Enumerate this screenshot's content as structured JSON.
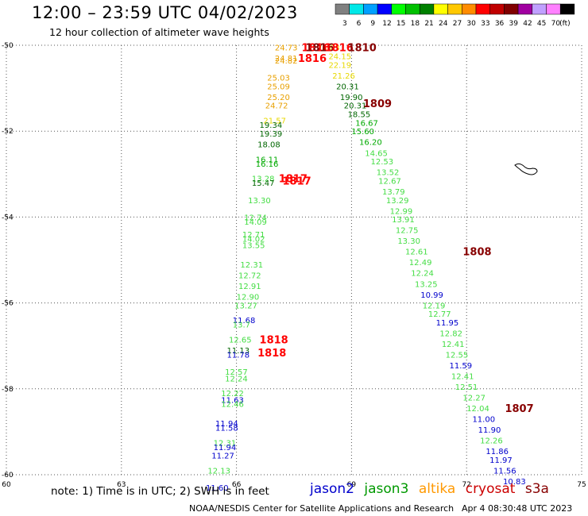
{
  "header": {
    "title": "12:00 – 23:59 UTC 04/02/2023",
    "subtitle": "12 hour collection of altimeter wave heights"
  },
  "color_scale": {
    "unit": "(ft)",
    "items": [
      {
        "label": "3",
        "color": "#808080"
      },
      {
        "label": "6",
        "color": "#00e8e8"
      },
      {
        "label": "9",
        "color": "#00a0ff"
      },
      {
        "label": "12",
        "color": "#0000ff"
      },
      {
        "label": "15",
        "color": "#00ff00"
      },
      {
        "label": "18",
        "color": "#00c000"
      },
      {
        "label": "21",
        "color": "#008000"
      },
      {
        "label": "24",
        "color": "#ffff00"
      },
      {
        "label": "27",
        "color": "#ffc800"
      },
      {
        "label": "30",
        "color": "#ff8c00"
      },
      {
        "label": "33",
        "color": "#ff0000"
      },
      {
        "label": "36",
        "color": "#c00000"
      },
      {
        "label": "39",
        "color": "#800000"
      },
      {
        "label": "42",
        "color": "#a000a0"
      },
      {
        "label": "45",
        "color": "#c0a0ff"
      },
      {
        "label": "70",
        "color": "#ff80ff"
      },
      {
        "label": "",
        "color": "#000000"
      }
    ]
  },
  "footer": {
    "note": "note:  1) Time is in UTC;  2) SWH is in feet",
    "credit": "NOAA/NESDIS Center for Satellite Applications and Research",
    "timestamp": "Apr  4 08:30:48 UTC 2023"
  },
  "satellites": [
    {
      "name": "jason2",
      "color": "#0000cc"
    },
    {
      "name": "jason3",
      "color": "#009900"
    },
    {
      "name": "altika",
      "color": "#ff9900"
    },
    {
      "name": "cryosat",
      "color": "#cc0000"
    },
    {
      "name": "s3a",
      "color": "#880000"
    }
  ],
  "chart_data": {
    "type": "scatter",
    "xlim": [
      60,
      75
    ],
    "ylim": [
      -60,
      -50
    ],
    "xticks": [
      "60",
      "63",
      "66",
      "69",
      "72",
      "75"
    ],
    "yticks": [
      "-50",
      "-52",
      "-54",
      "-56",
      "-58",
      "-60"
    ],
    "grid": true,
    "colors": {
      "yellow": "#e8d800",
      "orange": "#e8a000",
      "dkgreen": "#006600",
      "green": "#00aa00",
      "ltgreen": "#44dd44",
      "blue": "#0000cc",
      "red": "#ff0000",
      "maroon": "#880000"
    },
    "points": [
      {
        "x": 67.0,
        "y": -50.05,
        "label": "24.73",
        "c": "orange"
      },
      {
        "x": 68.1,
        "y": -50.05,
        "label": "24.83",
        "c": "yellow"
      },
      {
        "x": 67.0,
        "y": -50.3,
        "label": "24.81",
        "c": "orange"
      },
      {
        "x": 67.0,
        "y": -50.35,
        "label": "24.82",
        "c": "orange"
      },
      {
        "x": 68.4,
        "y": -50.25,
        "label": "24.15",
        "c": "yellow"
      },
      {
        "x": 68.4,
        "y": -50.45,
        "label": "22.19",
        "c": "yellow"
      },
      {
        "x": 68.5,
        "y": -50.7,
        "label": "21.26",
        "c": "yellow"
      },
      {
        "x": 66.8,
        "y": -50.75,
        "label": "25.03",
        "c": "orange"
      },
      {
        "x": 66.8,
        "y": -50.95,
        "label": "25.09",
        "c": "orange"
      },
      {
        "x": 68.6,
        "y": -50.95,
        "label": "20.31",
        "c": "dkgreen"
      },
      {
        "x": 66.8,
        "y": -51.2,
        "label": "25.20",
        "c": "orange"
      },
      {
        "x": 68.7,
        "y": -51.2,
        "label": "19.90",
        "c": "dkgreen"
      },
      {
        "x": 66.75,
        "y": -51.4,
        "label": "24.72",
        "c": "orange"
      },
      {
        "x": 68.8,
        "y": -51.4,
        "label": "20.31",
        "c": "dkgreen"
      },
      {
        "x": 68.9,
        "y": -51.6,
        "label": "18.55",
        "c": "dkgreen"
      },
      {
        "x": 66.7,
        "y": -51.75,
        "label": "21.57",
        "c": "yellow"
      },
      {
        "x": 69.1,
        "y": -51.8,
        "label": "16.67",
        "c": "green"
      },
      {
        "x": 66.6,
        "y": -51.85,
        "label": "19.34",
        "c": "dkgreen"
      },
      {
        "x": 69.0,
        "y": -52.0,
        "label": "15.60",
        "c": "green"
      },
      {
        "x": 66.6,
        "y": -52.05,
        "label": "19.39",
        "c": "dkgreen"
      },
      {
        "x": 69.2,
        "y": -52.25,
        "label": "16.20",
        "c": "green"
      },
      {
        "x": 66.55,
        "y": -52.3,
        "label": "18.08",
        "c": "dkgreen"
      },
      {
        "x": 69.35,
        "y": -52.5,
        "label": "14.65",
        "c": "ltgreen"
      },
      {
        "x": 66.5,
        "y": -52.65,
        "label": "16.11",
        "c": "green"
      },
      {
        "x": 69.5,
        "y": -52.7,
        "label": "12.53",
        "c": "ltgreen"
      },
      {
        "x": 66.5,
        "y": -52.75,
        "label": "16.16",
        "c": "green"
      },
      {
        "x": 69.65,
        "y": -52.95,
        "label": "13.52",
        "c": "ltgreen"
      },
      {
        "x": 66.4,
        "y": -53.1,
        "label": "13.28",
        "c": "ltgreen"
      },
      {
        "x": 69.7,
        "y": -53.15,
        "label": "12.67",
        "c": "ltgreen"
      },
      {
        "x": 66.4,
        "y": -53.2,
        "label": "15.47",
        "c": "dkgreen"
      },
      {
        "x": 69.8,
        "y": -53.4,
        "label": "13.79",
        "c": "ltgreen"
      },
      {
        "x": 69.9,
        "y": -53.6,
        "label": "13.29",
        "c": "ltgreen"
      },
      {
        "x": 66.3,
        "y": -53.6,
        "label": "13.30",
        "c": "ltgreen"
      },
      {
        "x": 70.0,
        "y": -53.85,
        "label": "12.99",
        "c": "ltgreen"
      },
      {
        "x": 66.2,
        "y": -54.0,
        "label": "12.74",
        "c": "ltgreen"
      },
      {
        "x": 70.05,
        "y": -54.05,
        "label": "13.91",
        "c": "ltgreen"
      },
      {
        "x": 66.2,
        "y": -54.1,
        "label": "14.09",
        "c": "ltgreen"
      },
      {
        "x": 70.15,
        "y": -54.3,
        "label": "12.75",
        "c": "ltgreen"
      },
      {
        "x": 66.15,
        "y": -54.4,
        "label": "12.71",
        "c": "ltgreen"
      },
      {
        "x": 70.2,
        "y": -54.55,
        "label": "13.30",
        "c": "ltgreen"
      },
      {
        "x": 66.15,
        "y": -54.5,
        "label": "14.02",
        "c": "ltgreen"
      },
      {
        "x": 66.15,
        "y": -54.65,
        "label": "13.55",
        "c": "ltgreen"
      },
      {
        "x": 70.4,
        "y": -54.8,
        "label": "12.61",
        "c": "ltgreen"
      },
      {
        "x": 70.5,
        "y": -55.05,
        "label": "12.49",
        "c": "ltgreen"
      },
      {
        "x": 66.1,
        "y": -55.1,
        "label": "12.31",
        "c": "ltgreen"
      },
      {
        "x": 70.55,
        "y": -55.3,
        "label": "12.24",
        "c": "ltgreen"
      },
      {
        "x": 66.05,
        "y": -55.35,
        "label": "12.72",
        "c": "ltgreen"
      },
      {
        "x": 70.65,
        "y": -55.55,
        "label": "13.25",
        "c": "ltgreen"
      },
      {
        "x": 66.05,
        "y": -55.6,
        "label": "12.91",
        "c": "ltgreen"
      },
      {
        "x": 70.8,
        "y": -55.8,
        "label": "10.99",
        "c": "blue"
      },
      {
        "x": 66.0,
        "y": -55.85,
        "label": "12.90",
        "c": "ltgreen"
      },
      {
        "x": 70.85,
        "y": -56.05,
        "label": "12.19",
        "c": "ltgreen"
      },
      {
        "x": 65.95,
        "y": -56.05,
        "label": "13.27",
        "c": "ltgreen"
      },
      {
        "x": 71.0,
        "y": -56.25,
        "label": "12.77",
        "c": "ltgreen"
      },
      {
        "x": 65.9,
        "y": -56.4,
        "label": "11.68",
        "c": "blue"
      },
      {
        "x": 71.2,
        "y": -56.45,
        "label": "11.95",
        "c": "blue"
      },
      {
        "x": 65.9,
        "y": -56.5,
        "label": "13.7",
        "c": "ltgreen"
      },
      {
        "x": 71.3,
        "y": -56.7,
        "label": "12.82",
        "c": "ltgreen"
      },
      {
        "x": 65.8,
        "y": -56.85,
        "label": "12.65",
        "c": "ltgreen"
      },
      {
        "x": 71.35,
        "y": -56.95,
        "label": "12.41",
        "c": "ltgreen"
      },
      {
        "x": 65.75,
        "y": -57.1,
        "label": "11.13",
        "c": "dkgreen"
      },
      {
        "x": 65.75,
        "y": -57.2,
        "label": "11.78",
        "c": "blue"
      },
      {
        "x": 71.45,
        "y": -57.2,
        "label": "12.55",
        "c": "ltgreen"
      },
      {
        "x": 71.55,
        "y": -57.45,
        "label": "11.59",
        "c": "blue"
      },
      {
        "x": 65.7,
        "y": -57.6,
        "label": "12.57",
        "c": "ltgreen"
      },
      {
        "x": 71.6,
        "y": -57.7,
        "label": "12.41",
        "c": "ltgreen"
      },
      {
        "x": 65.7,
        "y": -57.75,
        "label": "12.24",
        "c": "ltgreen"
      },
      {
        "x": 71.7,
        "y": -57.95,
        "label": "12.51",
        "c": "ltgreen"
      },
      {
        "x": 65.6,
        "y": -58.1,
        "label": "12.22",
        "c": "ltgreen"
      },
      {
        "x": 71.9,
        "y": -58.2,
        "label": "12.27",
        "c": "ltgreen"
      },
      {
        "x": 65.6,
        "y": -58.25,
        "label": "11.63",
        "c": "blue"
      },
      {
        "x": 65.6,
        "y": -58.35,
        "label": "12.46",
        "c": "ltgreen"
      },
      {
        "x": 72.0,
        "y": -58.45,
        "label": "12.04",
        "c": "ltgreen"
      },
      {
        "x": 72.15,
        "y": -58.7,
        "label": "11.00",
        "c": "blue"
      },
      {
        "x": 65.45,
        "y": -58.8,
        "label": "11.94",
        "c": "blue"
      },
      {
        "x": 65.45,
        "y": -58.9,
        "label": "11.58",
        "c": "blue"
      },
      {
        "x": 72.3,
        "y": -58.95,
        "label": "11.90",
        "c": "blue"
      },
      {
        "x": 72.35,
        "y": -59.2,
        "label": "12.26",
        "c": "ltgreen"
      },
      {
        "x": 65.4,
        "y": -59.25,
        "label": "12.31",
        "c": "ltgreen"
      },
      {
        "x": 65.4,
        "y": -59.35,
        "label": "11.94",
        "c": "blue"
      },
      {
        "x": 72.5,
        "y": -59.45,
        "label": "11.86",
        "c": "blue"
      },
      {
        "x": 65.35,
        "y": -59.55,
        "label": "11.27",
        "c": "blue"
      },
      {
        "x": 72.6,
        "y": -59.65,
        "label": "11.97",
        "c": "blue"
      },
      {
        "x": 72.7,
        "y": -59.9,
        "label": "11.56",
        "c": "blue"
      },
      {
        "x": 65.25,
        "y": -59.9,
        "label": "12.13",
        "c": "ltgreen"
      },
      {
        "x": 72.95,
        "y": -60.15,
        "label": "10.83",
        "c": "blue"
      },
      {
        "x": 65.2,
        "y": -60.3,
        "label": "11.60",
        "c": "blue"
      }
    ],
    "annotations": [
      {
        "x": 67.7,
        "y": -50.05,
        "label": "1816",
        "c": "red"
      },
      {
        "x": 67.8,
        "y": -50.05,
        "label": "1816",
        "c": "maroon"
      },
      {
        "x": 68.3,
        "y": -50.05,
        "label": "1816",
        "c": "red"
      },
      {
        "x": 68.9,
        "y": -50.05,
        "label": "1810",
        "c": "maroon"
      },
      {
        "x": 67.6,
        "y": -50.3,
        "label": "1816",
        "c": "red"
      },
      {
        "x": 69.3,
        "y": -51.35,
        "label": "1809",
        "c": "maroon"
      },
      {
        "x": 67.1,
        "y": -53.1,
        "label": "1817",
        "c": "red"
      },
      {
        "x": 67.2,
        "y": -53.15,
        "label": "1817",
        "c": "red"
      },
      {
        "x": 71.9,
        "y": -54.8,
        "label": "1808",
        "c": "maroon"
      },
      {
        "x": 66.6,
        "y": -56.85,
        "label": "1818",
        "c": "red"
      },
      {
        "x": 66.55,
        "y": -57.15,
        "label": "1818",
        "c": "red"
      },
      {
        "x": 73.0,
        "y": -58.45,
        "label": "1807",
        "c": "maroon"
      }
    ]
  }
}
